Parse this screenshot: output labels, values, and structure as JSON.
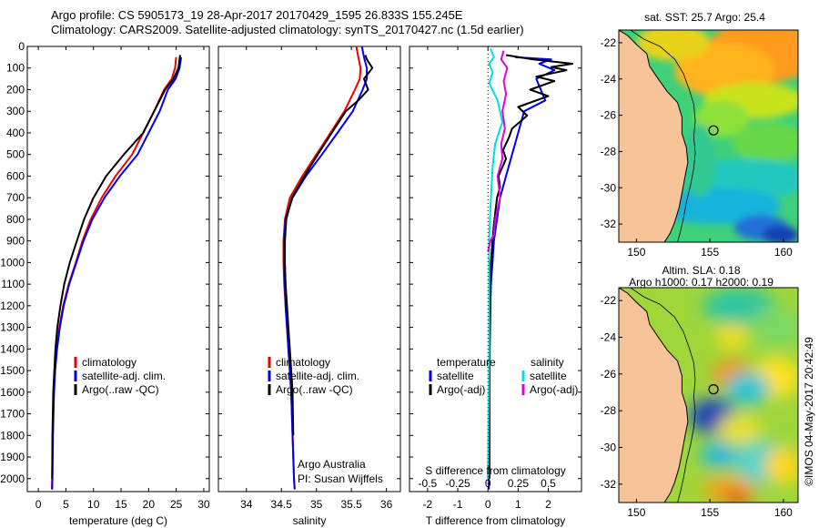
{
  "header": {
    "line1": "Argo profile: CS 5905173_19 28-Apr-2017 20170429_1595 26.833S 155.245E",
    "line2": "Climatology: CARS2009. Satellite-adjusted climatology: synTS_20170427.nc (1.5d earlier)"
  },
  "colors": {
    "climatology": "#ee0000",
    "satellite": "#0000ee",
    "argo": "#000000",
    "sat_salinity": "#00e0e0",
    "argo_salinity": "#e000e0",
    "land": "#f7c49a"
  },
  "chart_data": [
    {
      "type": "line",
      "title": "",
      "xlabel": "temperature (deg C)",
      "ylabel": "",
      "xlim": [
        -2,
        31
      ],
      "ylim": [
        2060,
        0
      ],
      "xticks": [
        0,
        5,
        10,
        15,
        20,
        25,
        30
      ],
      "yticks": [
        0,
        100,
        200,
        300,
        400,
        500,
        600,
        700,
        800,
        900,
        1000,
        1100,
        1200,
        1300,
        1400,
        1500,
        1600,
        1700,
        1800,
        1900,
        2000
      ],
      "legend": [
        "climatology",
        "satellite-adj. clim.",
        "Argo(..raw -QC)"
      ],
      "series": [
        {
          "name": "climatology",
          "color": "#ee0000",
          "x": [
            25.0,
            24.8,
            24.2,
            22.8,
            21.0,
            19.0,
            17.0,
            14.0,
            11.5,
            9.5,
            8.0,
            6.8,
            5.5,
            4.5,
            3.8,
            3.3,
            3.0,
            2.8,
            2.6,
            2.5,
            2.45
          ],
          "y": [
            50,
            100,
            150,
            200,
            300,
            400,
            500,
            600,
            700,
            800,
            900,
            1000,
            1100,
            1200,
            1300,
            1400,
            1500,
            1600,
            1800,
            2000,
            2050
          ]
        },
        {
          "name": "satellite-adj. clim.",
          "color": "#0000ee",
          "x": [
            25.9,
            25.6,
            24.9,
            23.5,
            22.0,
            20.0,
            18.0,
            14.8,
            12.0,
            9.8,
            8.2,
            6.9,
            5.6,
            4.6,
            3.9,
            3.4,
            3.05,
            2.85,
            2.65,
            2.55,
            2.5
          ],
          "y": [
            50,
            100,
            150,
            200,
            300,
            400,
            500,
            600,
            700,
            800,
            900,
            1000,
            1100,
            1200,
            1300,
            1400,
            1500,
            1600,
            1800,
            2000,
            2050
          ]
        },
        {
          "name": "Argo(..raw -QC)",
          "color": "#000000",
          "x": [
            25.7,
            25.6,
            25.4,
            24.5,
            23.0,
            21.0,
            19.0,
            15.5,
            12.3,
            10.0,
            8.3,
            7.0,
            5.7,
            4.7,
            4.0,
            3.45,
            3.1,
            2.9,
            2.7,
            2.55,
            2.5
          ],
          "y": [
            40,
            60,
            100,
            150,
            200,
            300,
            400,
            500,
            600,
            700,
            800,
            900,
            1000,
            1100,
            1200,
            1300,
            1400,
            1500,
            1600,
            1800,
            2000
          ]
        }
      ]
    },
    {
      "type": "line",
      "title": "",
      "xlabel": "salinity",
      "ylabel": "",
      "xlim": [
        33.6,
        36.2
      ],
      "ylim": [
        2060,
        0
      ],
      "xticks": [
        34,
        34.5,
        35,
        35.5,
        36
      ],
      "xtick_labels": [
        "34",
        "34.5",
        "35",
        "35.5",
        "36"
      ],
      "legend": [
        "climatology",
        "satellite-adj. clim.",
        "Argo(..raw -QC)"
      ],
      "annotation": [
        "Argo Australia",
        "PI: Susan Wijffels"
      ],
      "series": [
        {
          "name": "climatology",
          "color": "#ee0000",
          "x": [
            35.57,
            35.6,
            35.63,
            35.62,
            35.55,
            35.4,
            35.2,
            35.0,
            34.8,
            34.62,
            34.55,
            34.53,
            34.53,
            34.54,
            34.56,
            34.58,
            34.6,
            34.62,
            34.64,
            34.66,
            34.68,
            34.69
          ],
          "y": [
            0,
            50,
            100,
            150,
            200,
            300,
            400,
            500,
            600,
            700,
            800,
            900,
            1000,
            1100,
            1200,
            1300,
            1400,
            1500,
            1600,
            1800,
            2000,
            2050
          ]
        },
        {
          "name": "satellite-adj. clim.",
          "color": "#0000ee",
          "x": [
            35.65,
            35.68,
            35.72,
            35.72,
            35.66,
            35.52,
            35.3,
            35.08,
            34.85,
            34.66,
            34.56,
            34.54,
            34.54,
            34.55,
            34.56,
            34.58,
            34.6,
            34.62,
            34.64,
            34.66,
            34.68,
            34.69
          ],
          "y": [
            0,
            50,
            100,
            150,
            200,
            300,
            400,
            500,
            600,
            700,
            800,
            900,
            1000,
            1100,
            1200,
            1300,
            1400,
            1500,
            1600,
            1800,
            2000,
            2050
          ]
        },
        {
          "name": "Argo(..raw -QC)",
          "color": "#000000",
          "x": [
            35.7,
            35.72,
            35.8,
            35.68,
            35.74,
            35.6,
            35.42,
            35.22,
            35.02,
            34.83,
            34.65,
            34.57,
            34.55,
            34.55,
            34.56,
            34.58,
            34.6,
            34.62,
            34.64,
            34.66,
            34.67
          ],
          "y": [
            40,
            60,
            100,
            150,
            200,
            250,
            300,
            400,
            500,
            600,
            700,
            800,
            900,
            1000,
            1100,
            1200,
            1300,
            1400,
            1500,
            1600,
            1800
          ]
        }
      ]
    },
    {
      "type": "line",
      "title": "",
      "xlabel": "T difference from climatology",
      "xlabel_top": "S difference from climatology",
      "ylabel": "",
      "xlim": [
        -2.6,
        3.1
      ],
      "ylim": [
        2060,
        0
      ],
      "xticks": [
        -2,
        -1,
        0,
        1,
        2
      ],
      "xtick_labels": [
        "-2",
        "-1",
        "0",
        "1",
        "2"
      ],
      "s_xticks": [
        -0.5,
        -0.25,
        0,
        0.25,
        0.5
      ],
      "s_xtick_labels": [
        "-0.5",
        "-0.25",
        "0",
        "0.25",
        "0.5"
      ],
      "s_scale": 4,
      "legend": {
        "temperature": [
          "satellite",
          "Argo(-adj)"
        ],
        "salinity": [
          "satellite",
          "Argo(-adj)"
        ]
      },
      "legend_headers": [
        "temperature",
        "salinity"
      ],
      "series": [
        {
          "name": "temperature satellite",
          "color": "#0000ee",
          "unit": "T",
          "x": [
            0.9,
            2.1,
            1.7,
            2.2,
            1.6,
            1.9,
            1.2,
            1.0,
            0.8,
            0.6,
            0.4,
            0.3,
            0.2,
            0.15,
            0.1,
            0.08,
            0.05,
            0.05,
            0.04,
            0.04,
            0.03
          ],
          "y": [
            50,
            60,
            80,
            110,
            150,
            250,
            300,
            400,
            500,
            600,
            700,
            800,
            900,
            1000,
            1100,
            1200,
            1300,
            1400,
            1500,
            1800,
            2050
          ]
        },
        {
          "name": "temperature Argo(-adj)",
          "color": "#000000",
          "unit": "T",
          "x": [
            0.6,
            1.5,
            2.8,
            2.1,
            2.6,
            1.6,
            2.2,
            1.4,
            2.0,
            1.0,
            1.3,
            0.8,
            0.7,
            0.5,
            0.6,
            0.35,
            0.4,
            0.3,
            0.25,
            0.2,
            0.15,
            0.1,
            0.08,
            0.06,
            0.05,
            0.05
          ],
          "y": [
            40,
            60,
            80,
            95,
            110,
            140,
            160,
            200,
            230,
            280,
            320,
            380,
            420,
            480,
            520,
            600,
            650,
            700,
            760,
            820,
            900,
            1000,
            1200,
            1400,
            1600,
            2000
          ]
        },
        {
          "name": "salinity satellite",
          "color": "#00e0e0",
          "unit": "S",
          "x": [
            0.02,
            0.05,
            0.01,
            0.04,
            0.01,
            0.08,
            0.12,
            0.06,
            0.04,
            0.03,
            0.02,
            0.01,
            0.01,
            0.01,
            0.0
          ],
          "y": [
            10,
            50,
            80,
            120,
            170,
            250,
            350,
            450,
            550,
            650,
            750,
            900,
            1100,
            1400,
            2000
          ]
        },
        {
          "name": "salinity Argo(-adj)",
          "color": "#e000e0",
          "unit": "S",
          "x": [
            0.13,
            0.11,
            0.16,
            0.13,
            0.15,
            0.12,
            0.14,
            0.11,
            0.12,
            0.08,
            0.1,
            0.06,
            0.05,
            0.02,
            0.0
          ],
          "y": [
            20,
            60,
            100,
            160,
            220,
            300,
            380,
            450,
            520,
            600,
            700,
            800,
            870,
            900,
            950
          ]
        }
      ]
    },
    {
      "type": "heatmap",
      "title": "sat. SST: 25.7 Argo: 25.4",
      "xlim": [
        148.8,
        161.0
      ],
      "ylim": [
        -33.0,
        -21.3
      ],
      "xticks": [
        150,
        155,
        160
      ],
      "yticks": [
        -22,
        -24,
        -26,
        -28,
        -30,
        -32
      ],
      "ytick_labels": [
        "-22",
        "-24",
        "-26",
        "-28",
        "-30",
        "-32"
      ],
      "marker": [
        155.245,
        -26.833
      ]
    },
    {
      "type": "heatmap",
      "title": [
        "Altim. SLA: 0.18",
        "Argo h1000: 0.17 h2000: 0.19"
      ],
      "xlim": [
        148.8,
        161.0
      ],
      "ylim": [
        -33.0,
        -21.3
      ],
      "xticks": [
        150,
        155,
        160
      ],
      "yticks": [
        -22,
        -24,
        -26,
        -28,
        -30,
        -32
      ],
      "ytick_labels": [
        "-22",
        "-24",
        "-26",
        "-28",
        "-30",
        "-32"
      ],
      "marker": [
        155.245,
        -26.833
      ]
    }
  ],
  "footer": {
    "stamp": "©IMOS 04-May-2017 20:42:49"
  }
}
